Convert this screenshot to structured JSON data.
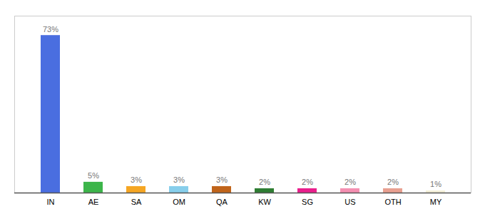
{
  "chart_data": {
    "type": "bar",
    "categories": [
      "IN",
      "AE",
      "SA",
      "OM",
      "QA",
      "KW",
      "SG",
      "US",
      "OTH",
      "MY"
    ],
    "values": [
      73,
      5,
      3,
      3,
      3,
      2,
      2,
      2,
      2,
      1
    ],
    "value_labels": [
      "73%",
      "5%",
      "3%",
      "3%",
      "3%",
      "2%",
      "2%",
      "2%",
      "2%",
      "1%"
    ],
    "colors": [
      "#4A6EE0",
      "#3CB54A",
      "#F5A623",
      "#87CEEB",
      "#C0641A",
      "#2E7D32",
      "#E91E8C",
      "#F48FB1",
      "#E8A090",
      "#F5F0D8"
    ],
    "ylim": [
      0,
      82
    ],
    "data_labels": true,
    "tick_labels": "x",
    "grid": false
  }
}
